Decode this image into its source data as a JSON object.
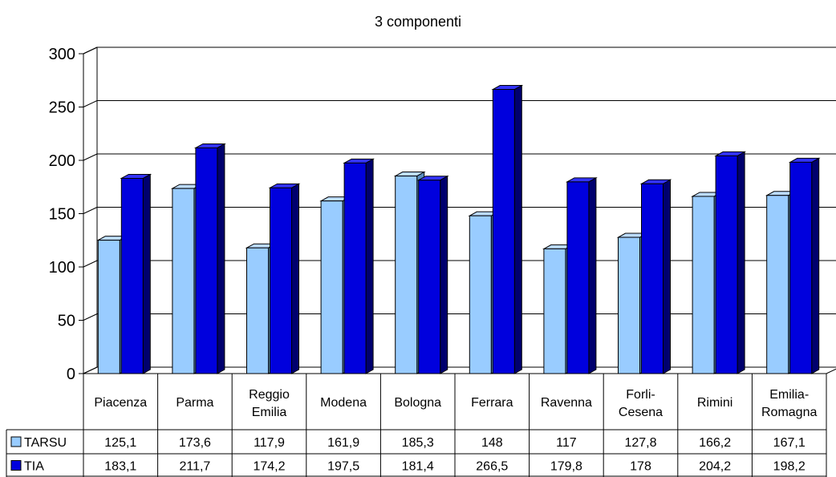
{
  "chart_data": {
    "type": "bar",
    "title": "3 componenti",
    "categories": [
      [
        "Piacenza"
      ],
      [
        "Parma"
      ],
      [
        "Reggio",
        "Emilia"
      ],
      [
        "Modena"
      ],
      [
        "Bologna"
      ],
      [
        "Ferrara"
      ],
      [
        "Ravenna"
      ],
      [
        "Forli-",
        "Cesena"
      ],
      [
        "Rimini"
      ],
      [
        "Emilia-",
        "Romagna"
      ]
    ],
    "series": [
      {
        "name": "TARSU",
        "values": [
          125.1,
          173.6,
          117.9,
          161.9,
          185.3,
          148,
          117,
          127.8,
          166.2,
          167.1
        ],
        "labels": [
          "125,1",
          "173,6",
          "117,9",
          "161,9",
          "185,3",
          "148",
          "117",
          "127,8",
          "166,2",
          "167,1"
        ],
        "color": "#99ccff",
        "top_color": "#bcdcff",
        "side_color": "#5c8fc0"
      },
      {
        "name": "TIA",
        "values": [
          183.1,
          211.7,
          174.2,
          197.5,
          181.4,
          266.5,
          179.8,
          178,
          204.2,
          198.2
        ],
        "labels": [
          "183,1",
          "211,7",
          "174,2",
          "197,5",
          "181,4",
          "266,5",
          "179,8",
          "178",
          "204,2",
          "198,2"
        ],
        "color": "#0000dd",
        "top_color": "#3333ff",
        "side_color": "#00006e"
      }
    ],
    "ylim": [
      0,
      300
    ],
    "yticks": [
      0,
      50,
      100,
      150,
      200,
      250,
      300
    ],
    "grid": true,
    "legend": "data-table"
  }
}
